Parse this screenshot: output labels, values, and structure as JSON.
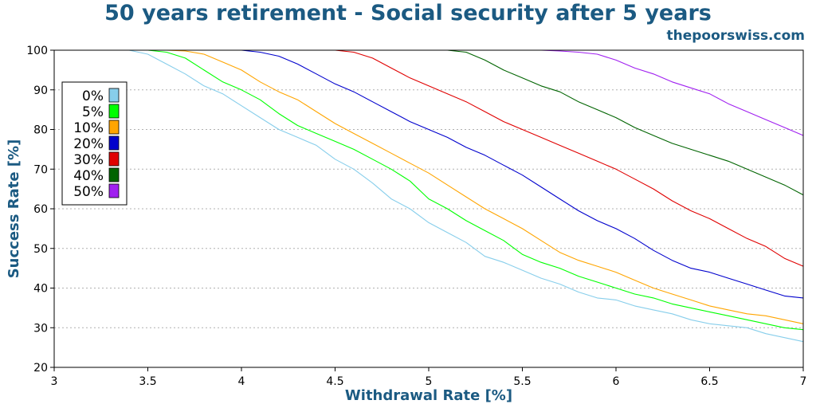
{
  "header": {
    "title": "50 years retirement - Social security after 5 years",
    "site": "thepoorswiss.com"
  },
  "colors": {
    "title": "#1b5a82",
    "grid": "#b0b0b0"
  },
  "chart_data": {
    "type": "line",
    "title": "50 years retirement - Social security after 5 years",
    "xlabel": "Withdrawal Rate [%]",
    "ylabel": "Success Rate [%]",
    "xlim": [
      3,
      7
    ],
    "ylim": [
      20,
      100
    ],
    "xticks": [
      "3",
      "3.5",
      "4",
      "4.5",
      "5",
      "5.5",
      "6",
      "6.5",
      "7"
    ],
    "yticks": [
      "20",
      "30",
      "40",
      "50",
      "60",
      "70",
      "80",
      "90",
      "100"
    ],
    "grid": "horizontal dotted",
    "legend_position": "upper-left",
    "x": [
      3.0,
      3.2,
      3.4,
      3.5,
      3.6,
      3.7,
      3.8,
      3.9,
      4.0,
      4.1,
      4.2,
      4.3,
      4.4,
      4.5,
      4.6,
      4.7,
      4.8,
      4.9,
      5.0,
      5.1,
      5.2,
      5.3,
      5.4,
      5.5,
      5.6,
      5.7,
      5.8,
      5.9,
      6.0,
      6.1,
      6.2,
      6.3,
      6.4,
      6.5,
      6.6,
      6.7,
      6.8,
      6.9,
      7.0
    ],
    "series": [
      {
        "name": "0%",
        "color": "#87ceeb",
        "values": [
          100,
          100,
          100,
          99,
          96.5,
          94,
          91,
          89,
          86,
          83,
          80,
          78,
          76,
          72.5,
          70,
          66.5,
          62.5,
          60,
          56.5,
          54,
          51.5,
          48,
          46.5,
          44.5,
          42.5,
          41,
          39,
          37.5,
          37,
          35.5,
          34.5,
          33.5,
          32,
          31,
          30.5,
          30,
          28.5,
          27.5,
          26.5
        ]
      },
      {
        "name": "5%",
        "color": "#00ff00",
        "values": [
          100,
          100,
          100,
          100,
          99.5,
          98,
          95,
          92,
          90,
          87.5,
          84,
          81,
          79,
          77,
          75,
          72.5,
          70,
          67,
          62.5,
          60,
          57,
          54.5,
          52,
          48.5,
          46.5,
          45,
          43,
          41.5,
          40,
          38.5,
          37.5,
          36,
          35,
          34,
          33,
          32,
          31,
          30,
          29.5
        ]
      },
      {
        "name": "10%",
        "color": "#ffa500",
        "values": [
          100,
          100,
          100,
          100,
          100,
          99.8,
          99,
          97,
          95,
          92,
          89.5,
          87.5,
          84.5,
          81.5,
          79,
          76.5,
          74,
          71.5,
          69,
          66,
          63,
          60,
          57.5,
          55,
          52,
          49,
          47,
          45.5,
          44,
          42,
          40,
          38.5,
          37,
          35.5,
          34.5,
          33.5,
          33,
          32,
          31
        ]
      },
      {
        "name": "20%",
        "color": "#0000cd",
        "values": [
          100,
          100,
          100,
          100,
          100,
          100,
          100,
          100,
          100,
          99.5,
          98.5,
          96.5,
          94,
          91.5,
          89.5,
          87,
          84.5,
          82,
          80,
          78,
          75.5,
          73.5,
          71,
          68.5,
          65.5,
          62.5,
          59.5,
          57,
          55,
          52.5,
          49.5,
          47,
          45,
          44,
          42.5,
          41,
          39.5,
          38,
          37.5
        ]
      },
      {
        "name": "30%",
        "color": "#e00000",
        "values": [
          100,
          100,
          100,
          100,
          100,
          100,
          100,
          100,
          100,
          100,
          100,
          100,
          100,
          100,
          99.5,
          98,
          95.5,
          93,
          91,
          89,
          87,
          84.5,
          82,
          80,
          78,
          76,
          74,
          72,
          70,
          67.5,
          65,
          62,
          59.5,
          57.5,
          55,
          52.5,
          50.5,
          47.5,
          45.5
        ]
      },
      {
        "name": "40%",
        "color": "#006400",
        "values": [
          100,
          100,
          100,
          100,
          100,
          100,
          100,
          100,
          100,
          100,
          100,
          100,
          100,
          100,
          100,
          100,
          100,
          100,
          100,
          100,
          99.5,
          97.5,
          95,
          93,
          91,
          89.5,
          87,
          85,
          83,
          80.5,
          78.5,
          76.5,
          75,
          73.5,
          72,
          70,
          68,
          66,
          63.5
        ]
      },
      {
        "name": "50%",
        "color": "#a020f0",
        "values": [
          100,
          100,
          100,
          100,
          100,
          100,
          100,
          100,
          100,
          100,
          100,
          100,
          100,
          100,
          100,
          100,
          100,
          100,
          100,
          100,
          100,
          100,
          100,
          100,
          100,
          99.8,
          99.5,
          99,
          97.5,
          95.5,
          94,
          92,
          90.5,
          89,
          86.5,
          84.5,
          82.5,
          80.5,
          78.5
        ]
      }
    ]
  }
}
